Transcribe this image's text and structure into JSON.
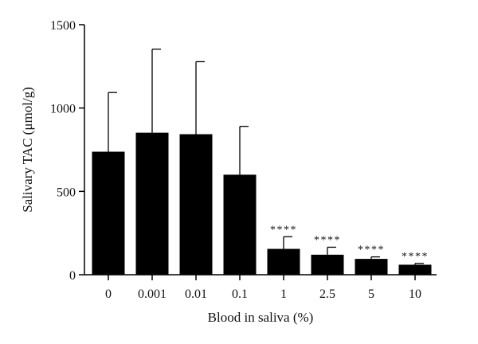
{
  "chart_data": {
    "type": "bar",
    "categories": [
      "0",
      "0.001",
      "0.01",
      "0.1",
      "1",
      "2.5",
      "5",
      "10"
    ],
    "values": [
      738,
      852,
      843,
      600,
      155,
      120,
      95,
      60
    ],
    "error_upper": [
      1093,
      1353,
      1278,
      890,
      228,
      165,
      107,
      68
    ],
    "annotations": [
      "",
      "",
      "",
      "",
      "****",
      "****",
      "****",
      "****"
    ],
    "xlabel": "Blood in saliva (%)",
    "ylabel": "Salivary TAC (μmol/g)",
    "ylim": [
      0,
      1500
    ],
    "yticks": [
      0,
      500,
      1000,
      1500
    ],
    "bar_color": "#000000",
    "grid": false
  }
}
